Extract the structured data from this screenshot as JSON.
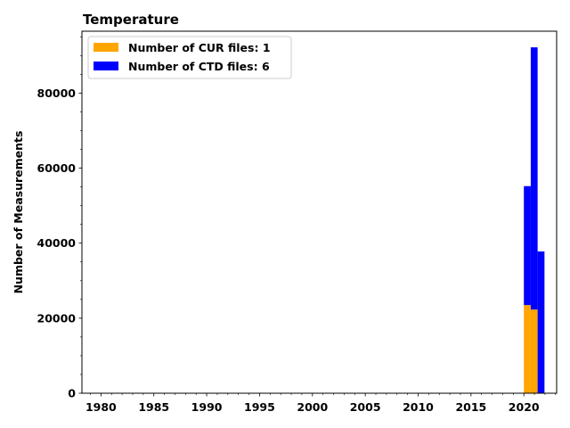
{
  "chart_data": {
    "type": "bar",
    "stacked": true,
    "title": "Temperature",
    "xlabel": "",
    "ylabel": "Number of Measurements",
    "xlim": [
      1978.2,
      2023.1
    ],
    "ylim": [
      0,
      96500
    ],
    "x_major_ticks": [
      1980,
      1985,
      1990,
      1995,
      2000,
      2005,
      2010,
      2015,
      2020
    ],
    "x_tick_labels": [
      "1980",
      "1985",
      "1990",
      "1995",
      "2000",
      "2005",
      "2010",
      "2015",
      "2020"
    ],
    "y_major_ticks": [
      0,
      20000,
      40000,
      60000,
      80000
    ],
    "y_tick_labels": [
      "0",
      "20000",
      "40000",
      "60000",
      "80000"
    ],
    "bin_width": 0.65,
    "bins": [
      2020.0,
      2020.65,
      2021.3
    ],
    "series": [
      {
        "name": "Number of CUR files: 1",
        "color": "#ffa500",
        "values": [
          23500,
          22300,
          0
        ]
      },
      {
        "name": "Number of CTD files: 6",
        "color": "#0000ff",
        "values": [
          31700,
          69900,
          37800
        ]
      }
    ],
    "legend_position": "upper-left",
    "grid": false
  }
}
